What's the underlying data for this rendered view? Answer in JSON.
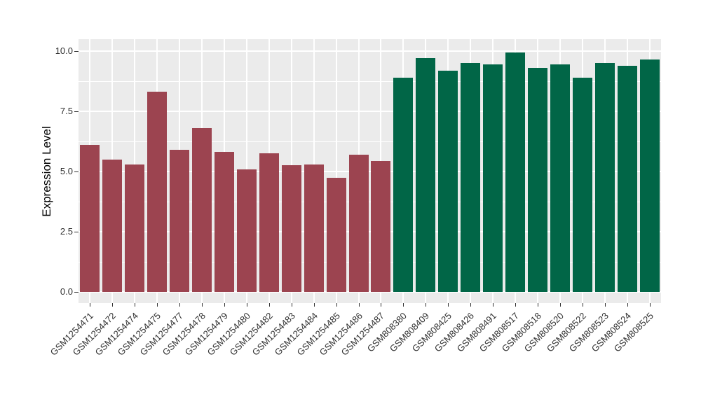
{
  "figure": {
    "background": "#FFFFFF"
  },
  "chart_data": {
    "type": "bar",
    "title": "",
    "xlabel": "",
    "ylabel": "Expression Level",
    "categories": [
      "GSM1254471",
      "GSM1254472",
      "GSM1254474",
      "GSM1254475",
      "GSM1254477",
      "GSM1254478",
      "GSM1254479",
      "GSM1254480",
      "GSM1254482",
      "GSM1254483",
      "GSM1254484",
      "GSM1254485",
      "GSM1254486",
      "GSM1254487",
      "GSM808380",
      "GSM808409",
      "GSM808425",
      "GSM808426",
      "GSM808491",
      "GSM808517",
      "GSM808518",
      "GSM808520",
      "GSM808522",
      "GSM808523",
      "GSM808524",
      "GSM808525"
    ],
    "values": [
      6.1,
      5.5,
      5.3,
      8.3,
      5.9,
      6.8,
      5.8,
      5.1,
      5.75,
      5.25,
      5.3,
      4.75,
      5.7,
      5.45,
      8.9,
      9.7,
      9.2,
      9.5,
      9.45,
      9.95,
      9.3,
      9.45,
      8.9,
      9.5,
      9.4,
      9.65
    ],
    "groups": [
      {
        "name": "red-group",
        "color": "#9C4450"
      },
      {
        "name": "green-group",
        "color": "#016647"
      }
    ],
    "group_index": [
      0,
      0,
      0,
      0,
      0,
      0,
      0,
      0,
      0,
      0,
      0,
      0,
      0,
      0,
      1,
      1,
      1,
      1,
      1,
      1,
      1,
      1,
      1,
      1,
      1,
      1
    ],
    "ylim": [
      0,
      10.5
    ],
    "y_major_ticks": [
      {
        "label": "0.0",
        "value": 0
      },
      {
        "label": "2.5",
        "value": 2.5
      },
      {
        "label": "5.0",
        "value": 5
      },
      {
        "label": "7.5",
        "value": 7.5
      },
      {
        "label": "10.0",
        "value": 10
      }
    ],
    "y_minor_ticks": [
      1.25,
      3.75,
      6.25,
      8.75
    ],
    "grid": "on",
    "legend": "none",
    "panel_background": "#EBEBEB",
    "gridline_color": "#FFFFFF",
    "tick_color": "#333333",
    "tick_label_color": "#303030"
  }
}
